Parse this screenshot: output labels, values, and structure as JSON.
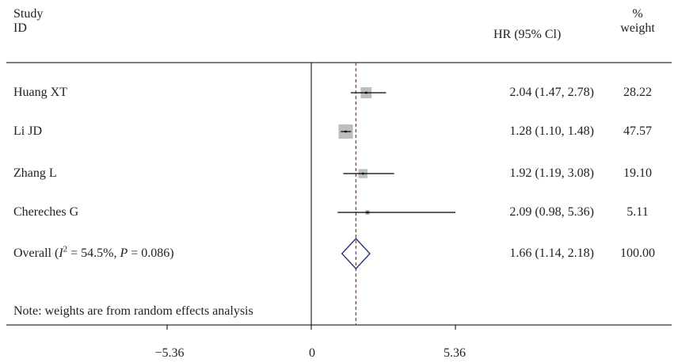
{
  "header": {
    "study_line1": "Study",
    "study_line2": "ID",
    "hr_label": "HR (95% Cl)",
    "weight_line1": "%",
    "weight_line2": "weight"
  },
  "overall": {
    "label_prefix": "Overall (",
    "i_symbol": "I",
    "i_sup": "2",
    "label_mid": " = 54.5%, ",
    "p_symbol": "P",
    "label_suffix": " = 0.086)",
    "hr_text": "1.66 (1.14, 2.18)",
    "weight": "100.00"
  },
  "note": "Note: weights are from random effects analysis",
  "colors": {
    "box": "#bdbdbd",
    "line": "#000000",
    "diamond": "#2a2a6e",
    "ref_line": "#a0302a"
  },
  "chart_data": {
    "type": "forest",
    "studies": [
      {
        "id": "Huang XT",
        "hr": 2.04,
        "lower": 1.47,
        "upper": 2.78,
        "hr_text": "2.04 (1.47, 2.78)",
        "weight": 28.22,
        "weight_text": "28.22"
      },
      {
        "id": "Li JD",
        "hr": 1.28,
        "lower": 1.1,
        "upper": 1.48,
        "hr_text": "1.28 (1.10, 1.48)",
        "weight": 47.57,
        "weight_text": "47.57"
      },
      {
        "id": "Zhang L",
        "hr": 1.92,
        "lower": 1.19,
        "upper": 3.08,
        "hr_text": "1.92 (1.19, 3.08)",
        "weight": 19.1,
        "weight_text": "19.10"
      },
      {
        "id": "Chereches G",
        "hr": 2.09,
        "lower": 0.98,
        "upper": 5.36,
        "hr_text": "2.09 (0.98, 5.36)",
        "weight": 5.11,
        "weight_text": "5.11"
      }
    ],
    "overall": {
      "hr": 1.66,
      "lower": 1.14,
      "upper": 2.18
    },
    "null_line": 0,
    "xlim": [
      -5.36,
      5.36
    ],
    "xticks": [
      -5.36,
      0,
      5.36
    ],
    "xtick_labels": [
      "−5.36",
      "0",
      "5.36"
    ]
  }
}
